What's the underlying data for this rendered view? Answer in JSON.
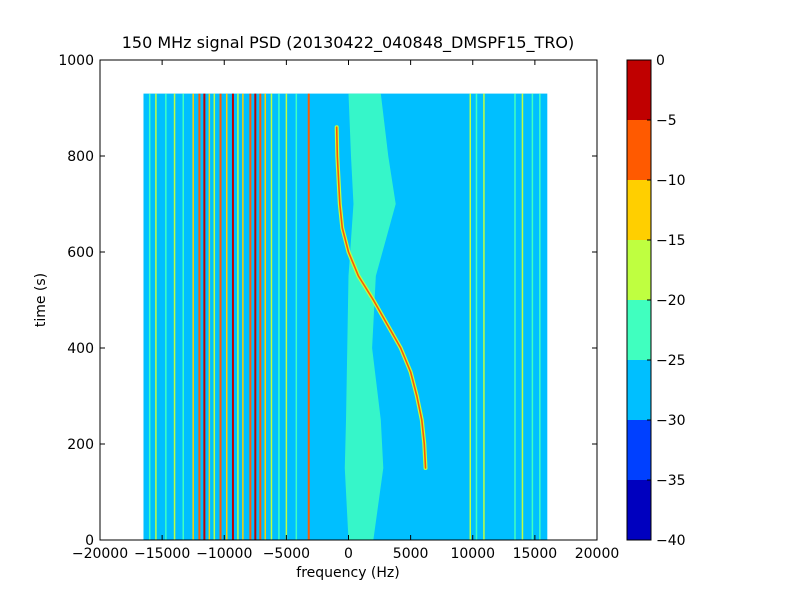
{
  "chart_data": {
    "type": "heatmap",
    "title": "150 MHz signal PSD (20130422_040848_DMSPF15_TRO)",
    "xlabel": "frequency (Hz)",
    "ylabel": "time (s)",
    "xlim": [
      -20000,
      20000
    ],
    "ylim": [
      0,
      1000
    ],
    "x_ticks": [
      -20000,
      -15000,
      -10000,
      -5000,
      0,
      5000,
      10000,
      15000,
      20000
    ],
    "x_tick_labels": [
      "−20000",
      "−15000",
      "−10000",
      "−5000",
      "0",
      "5000",
      "10000",
      "15000",
      "20000"
    ],
    "y_ticks": [
      0,
      200,
      400,
      600,
      800,
      1000
    ],
    "y_tick_labels": [
      "0",
      "200",
      "400",
      "600",
      "800",
      "1000"
    ],
    "data_extent": {
      "x": [
        -16500,
        16000
      ],
      "y": [
        0,
        930
      ]
    },
    "background_level": -27.5,
    "colorbar": {
      "levels": [
        -40,
        -35,
        -30,
        -25,
        -20,
        -15,
        -10,
        -5,
        0
      ],
      "tick_labels": [
        "−40",
        "−35",
        "−30",
        "−25",
        "−20",
        "−15",
        "−10",
        "−5",
        "0"
      ],
      "colors": [
        "#0000bf",
        "#0040ff",
        "#00bfff",
        "#40ffbf",
        "#bfff40",
        "#ffcf00",
        "#ff5a00",
        "#c00000"
      ]
    },
    "spectral_lines": [
      {
        "freq": -16000,
        "level": -22.5
      },
      {
        "freq": -15500,
        "level": -17.5
      },
      {
        "freq": -14700,
        "level": -22.5
      },
      {
        "freq": -14000,
        "level": -17.5
      },
      {
        "freq": -13300,
        "level": -22.5
      },
      {
        "freq": -12500,
        "level": -12.5
      },
      {
        "freq": -12000,
        "level": -7.5
      },
      {
        "freq": -11600,
        "level": -2.5
      },
      {
        "freq": -11200,
        "level": -12.5
      },
      {
        "freq": -10800,
        "level": -17.5
      },
      {
        "freq": -10300,
        "level": -7.5
      },
      {
        "freq": -9800,
        "level": -12.5
      },
      {
        "freq": -9300,
        "level": -2.5
      },
      {
        "freq": -8900,
        "level": -17.5
      },
      {
        "freq": -8500,
        "level": -12.5
      },
      {
        "freq": -7900,
        "level": -7.5
      },
      {
        "freq": -7500,
        "level": -2.5
      },
      {
        "freq": -7100,
        "level": -7.5
      },
      {
        "freq": -6700,
        "level": -12.5
      },
      {
        "freq": -6200,
        "level": -17.5
      },
      {
        "freq": -5600,
        "level": -22.5
      },
      {
        "freq": -5000,
        "level": -17.5
      },
      {
        "freq": -4200,
        "level": -22.5
      },
      {
        "freq": -3200,
        "level": -7.5
      },
      {
        "freq": 9800,
        "level": -17.5
      },
      {
        "freq": 10300,
        "level": -22.5
      },
      {
        "freq": 10900,
        "level": -17.5
      },
      {
        "freq": 13400,
        "level": -22.5
      },
      {
        "freq": 14000,
        "level": -17.5
      },
      {
        "freq": 14800,
        "level": -22.5
      },
      {
        "freq": 15400,
        "level": -22.5
      }
    ],
    "noise_band": {
      "level": -22.5,
      "points": [
        {
          "time": 0,
          "fmin": 0,
          "fmax": 2000
        },
        {
          "time": 150,
          "fmin": -300,
          "fmax": 2800
        },
        {
          "time": 250,
          "fmin": -200,
          "fmax": 2600
        },
        {
          "time": 400,
          "fmin": -100,
          "fmax": 1900
        },
        {
          "time": 550,
          "fmin": 0,
          "fmax": 2200
        },
        {
          "time": 700,
          "fmin": 400,
          "fmax": 3800
        },
        {
          "time": 800,
          "fmin": 200,
          "fmax": 3200
        },
        {
          "time": 930,
          "fmin": 0,
          "fmax": 2600
        }
      ]
    },
    "doppler_trace": {
      "level": -7.5,
      "points": [
        {
          "time": 150,
          "freq": 6200
        },
        {
          "time": 200,
          "freq": 6100
        },
        {
          "time": 250,
          "freq": 5900
        },
        {
          "time": 300,
          "freq": 5500
        },
        {
          "time": 350,
          "freq": 5000
        },
        {
          "time": 400,
          "freq": 4200
        },
        {
          "time": 450,
          "freq": 3100
        },
        {
          "time": 500,
          "freq": 2000
        },
        {
          "time": 550,
          "freq": 800
        },
        {
          "time": 600,
          "freq": 0
        },
        {
          "time": 650,
          "freq": -500
        },
        {
          "time": 700,
          "freq": -700
        },
        {
          "time": 750,
          "freq": -800
        },
        {
          "time": 800,
          "freq": -900
        },
        {
          "time": 860,
          "freq": -950
        }
      ]
    }
  }
}
